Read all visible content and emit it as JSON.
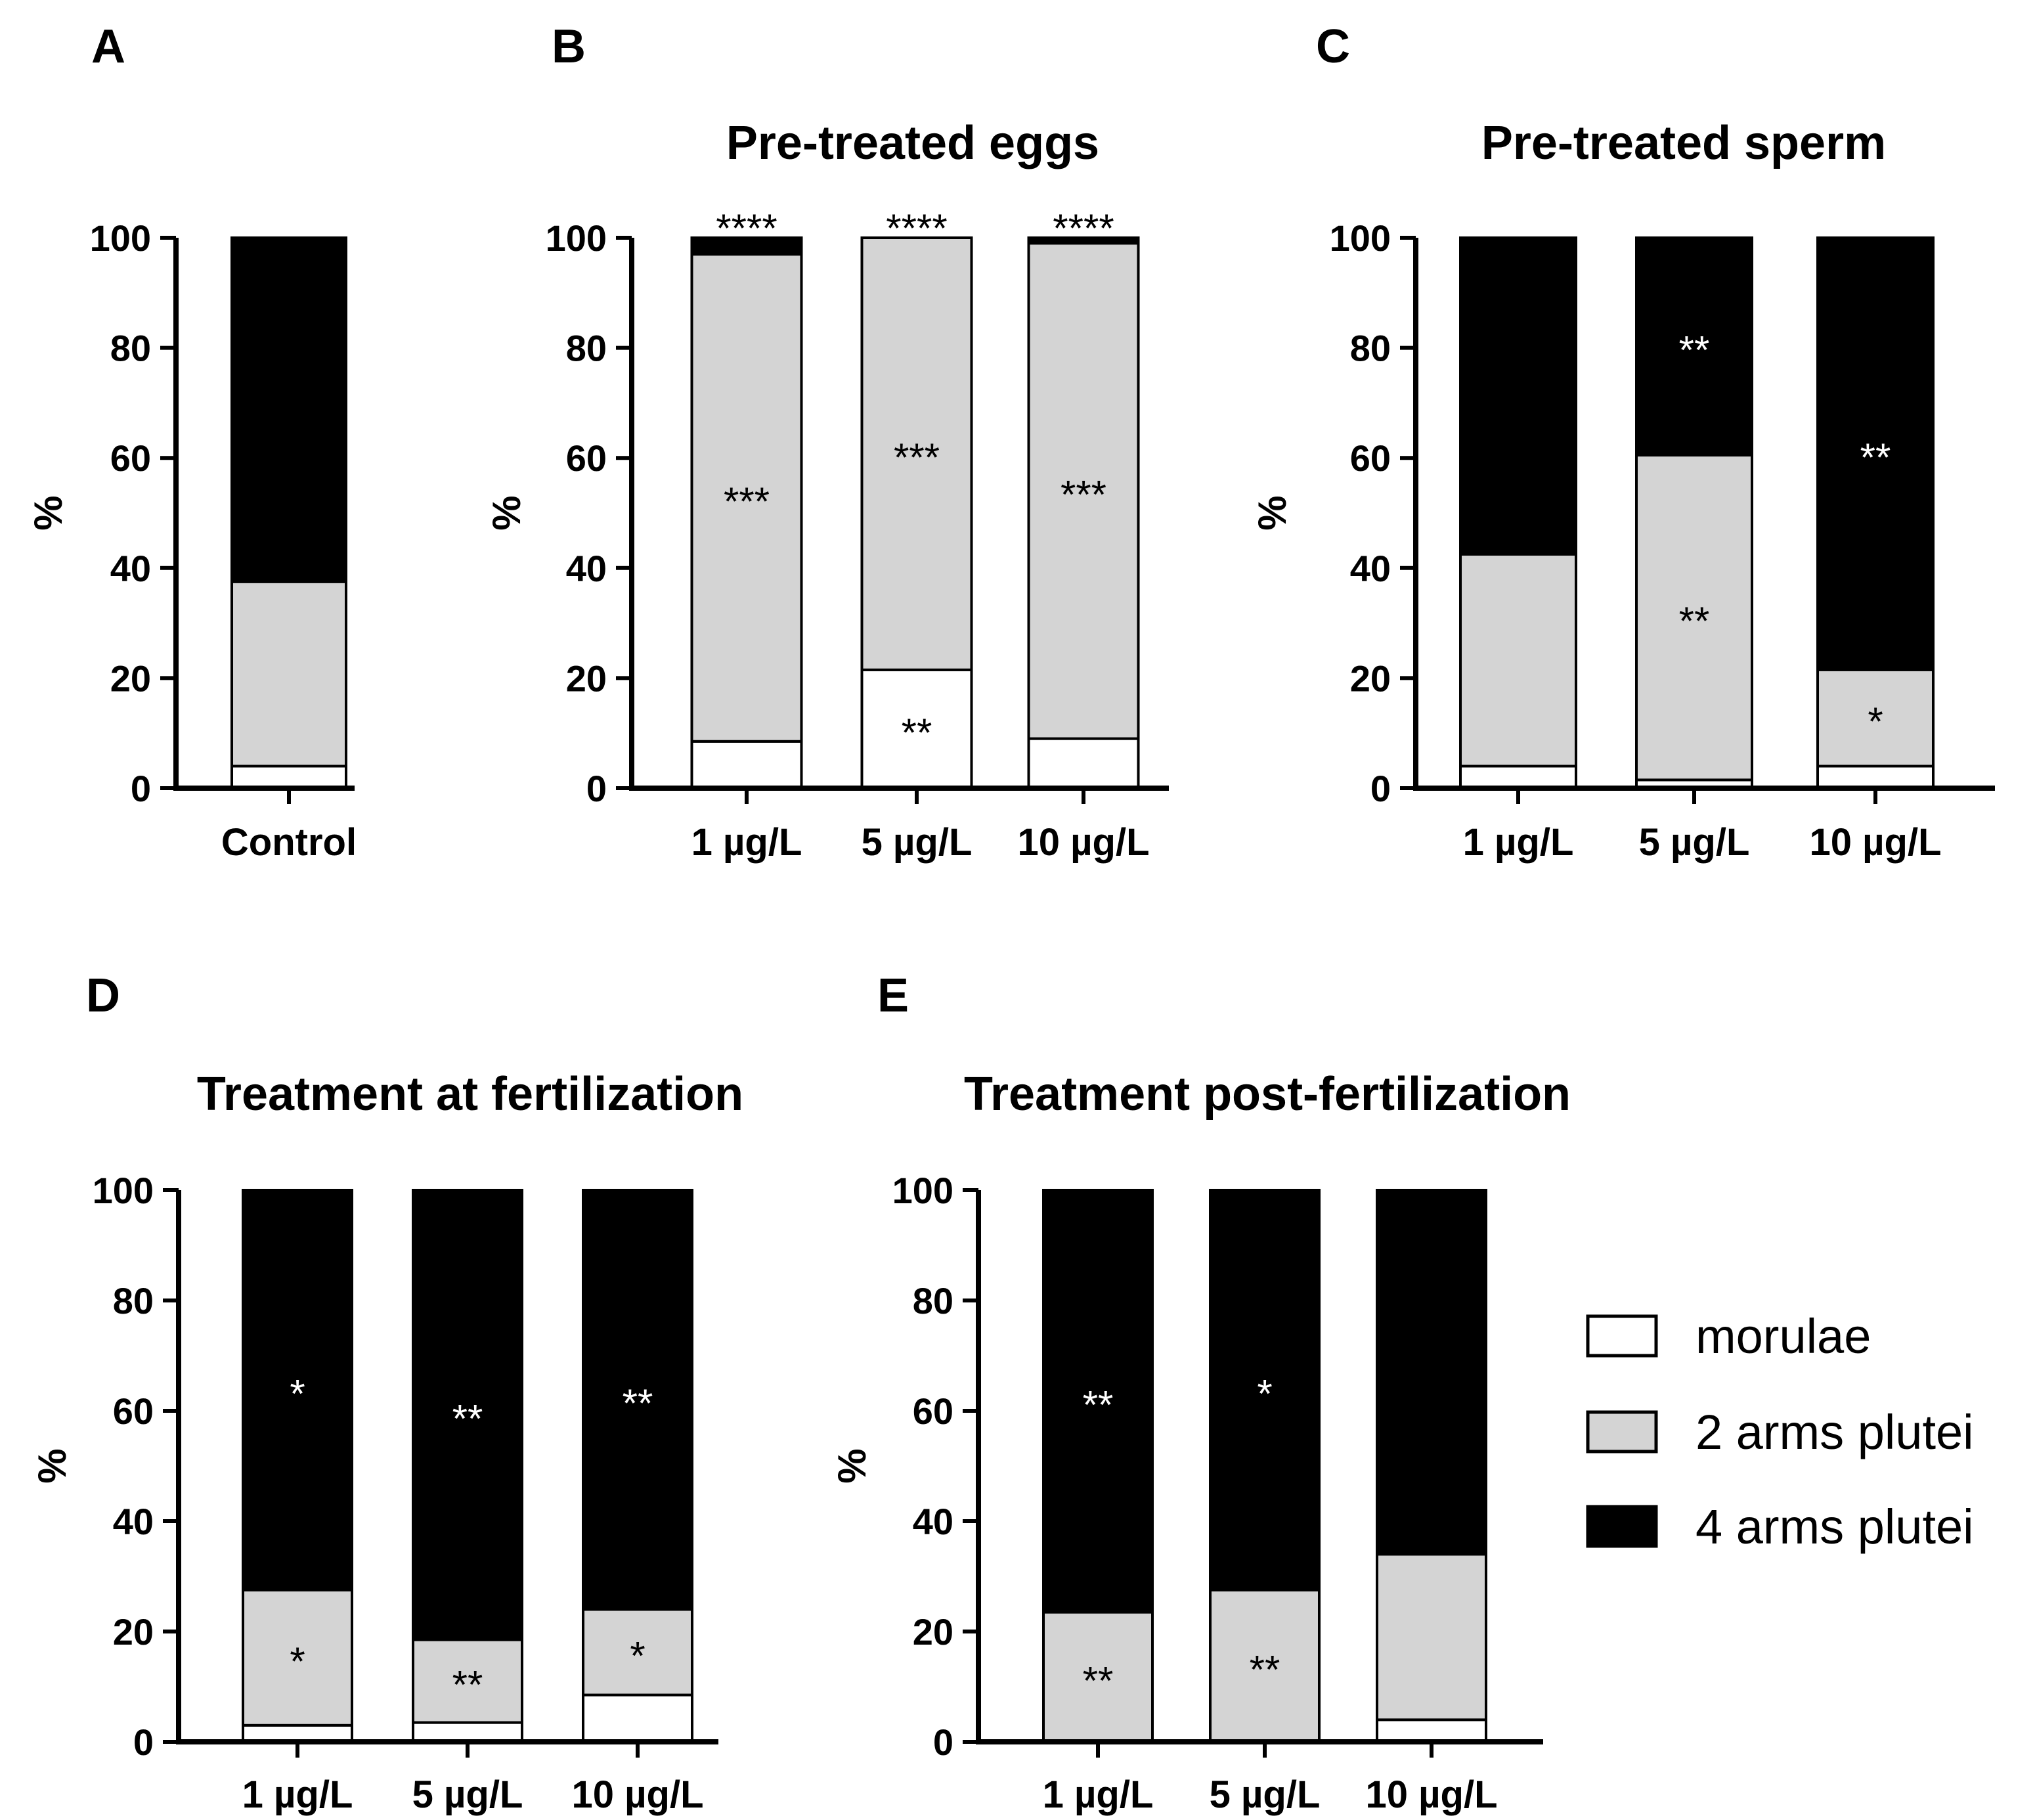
{
  "figure": {
    "legend": [
      {
        "key": "morulae",
        "label": "morulae"
      },
      {
        "key": "two_arms",
        "label": "2 arms plutei"
      },
      {
        "key": "four_arms",
        "label": "4 arms plutei"
      }
    ],
    "colors": {
      "morulae": "#ffffff",
      "two_arms": "#d4d4d4",
      "four_arms": "#000000",
      "outline": "#000000"
    }
  },
  "chart_data": [
    {
      "id": "A",
      "letter": "A",
      "title": "",
      "type": "bar",
      "stacked": true,
      "ylabel": "%",
      "ylim": [
        0,
        100
      ],
      "yticks": [
        "0",
        "20",
        "40",
        "60",
        "80",
        "100"
      ],
      "categories": [
        "Control"
      ],
      "series": [
        {
          "name": "morulae",
          "values": [
            4
          ]
        },
        {
          "name": "2 arms plutei",
          "values": [
            33.5
          ]
        },
        {
          "name": "4 arms plutei",
          "values": [
            62.5
          ]
        }
      ],
      "annotations": []
    },
    {
      "id": "B",
      "letter": "B",
      "title": "Pre-treated eggs",
      "type": "bar",
      "stacked": true,
      "ylabel": "%",
      "ylim": [
        0,
        100
      ],
      "yticks": [
        "0",
        "20",
        "40",
        "60",
        "80",
        "100"
      ],
      "categories": [
        "1 µg/L",
        "5 µg/L",
        "10 µg/L"
      ],
      "series": [
        {
          "name": "morulae",
          "values": [
            8.5,
            21.5,
            9
          ]
        },
        {
          "name": "2 arms plutei",
          "values": [
            88.5,
            78.5,
            90
          ]
        },
        {
          "name": "4 arms plutei",
          "values": [
            3,
            0,
            1
          ]
        }
      ],
      "annotations": [
        {
          "cat": 0,
          "series": 2,
          "text": "****"
        },
        {
          "cat": 1,
          "series": 2,
          "text": "****"
        },
        {
          "cat": 2,
          "series": 2,
          "text": "****"
        },
        {
          "cat": 0,
          "series": 1,
          "text": "***"
        },
        {
          "cat": 1,
          "series": 1,
          "text": "***"
        },
        {
          "cat": 2,
          "series": 1,
          "text": "***"
        },
        {
          "cat": 1,
          "series": 0,
          "text": "**"
        }
      ]
    },
    {
      "id": "C",
      "letter": "C",
      "title": "Pre-treated sperm",
      "type": "bar",
      "stacked": true,
      "ylabel": "%",
      "ylim": [
        0,
        100
      ],
      "yticks": [
        "0",
        "20",
        "40",
        "60",
        "80",
        "100"
      ],
      "categories": [
        "1 µg/L",
        "5 µg/L",
        "10 µg/L"
      ],
      "series": [
        {
          "name": "morulae",
          "values": [
            4,
            1.5,
            4
          ]
        },
        {
          "name": "2 arms plutei",
          "values": [
            38.5,
            59,
            17.5
          ]
        },
        {
          "name": "4 arms plutei",
          "values": [
            57.5,
            39.5,
            78.5
          ]
        }
      ],
      "annotations": [
        {
          "cat": 1,
          "series": 2,
          "text": "**"
        },
        {
          "cat": 1,
          "series": 1,
          "text": "**"
        },
        {
          "cat": 2,
          "series": 2,
          "text": "**"
        },
        {
          "cat": 2,
          "series": 1,
          "text": "*"
        }
      ]
    },
    {
      "id": "D",
      "letter": "D",
      "title": "Treatment at fertilization",
      "type": "bar",
      "stacked": true,
      "ylabel": "%",
      "ylim": [
        0,
        100
      ],
      "yticks": [
        "0",
        "20",
        "40",
        "60",
        "80",
        "100"
      ],
      "categories": [
        "1 µg/L",
        "5 µg/L",
        "10 µg/L"
      ],
      "series": [
        {
          "name": "morulae",
          "values": [
            3,
            3.5,
            8.5
          ]
        },
        {
          "name": "2 arms plutei",
          "values": [
            24.5,
            15,
            15.5
          ]
        },
        {
          "name": "4 arms plutei",
          "values": [
            72.5,
            81.5,
            76
          ]
        }
      ],
      "annotations": [
        {
          "cat": 0,
          "series": 2,
          "text": "*"
        },
        {
          "cat": 1,
          "series": 2,
          "text": "**"
        },
        {
          "cat": 2,
          "series": 2,
          "text": "**"
        },
        {
          "cat": 0,
          "series": 1,
          "text": "*"
        },
        {
          "cat": 1,
          "series": 1,
          "text": "**"
        },
        {
          "cat": 2,
          "series": 1,
          "text": "*"
        }
      ]
    },
    {
      "id": "E",
      "letter": "E",
      "title": "Treatment post-fertilization",
      "type": "bar",
      "stacked": true,
      "ylabel": "%",
      "ylim": [
        0,
        100
      ],
      "yticks": [
        "0",
        "20",
        "40",
        "60",
        "80",
        "100"
      ],
      "categories": [
        "1 µg/L",
        "5 µg/L",
        "10 µg/L"
      ],
      "series": [
        {
          "name": "morulae",
          "values": [
            0,
            0,
            4
          ]
        },
        {
          "name": "2 arms plutei",
          "values": [
            23.5,
            27.5,
            30
          ]
        },
        {
          "name": "4 arms plutei",
          "values": [
            76.5,
            72.5,
            66
          ]
        }
      ],
      "annotations": [
        {
          "cat": 0,
          "series": 2,
          "text": "**"
        },
        {
          "cat": 1,
          "series": 2,
          "text": "*"
        },
        {
          "cat": 0,
          "series": 1,
          "text": "**"
        },
        {
          "cat": 1,
          "series": 1,
          "text": "**"
        }
      ]
    }
  ]
}
